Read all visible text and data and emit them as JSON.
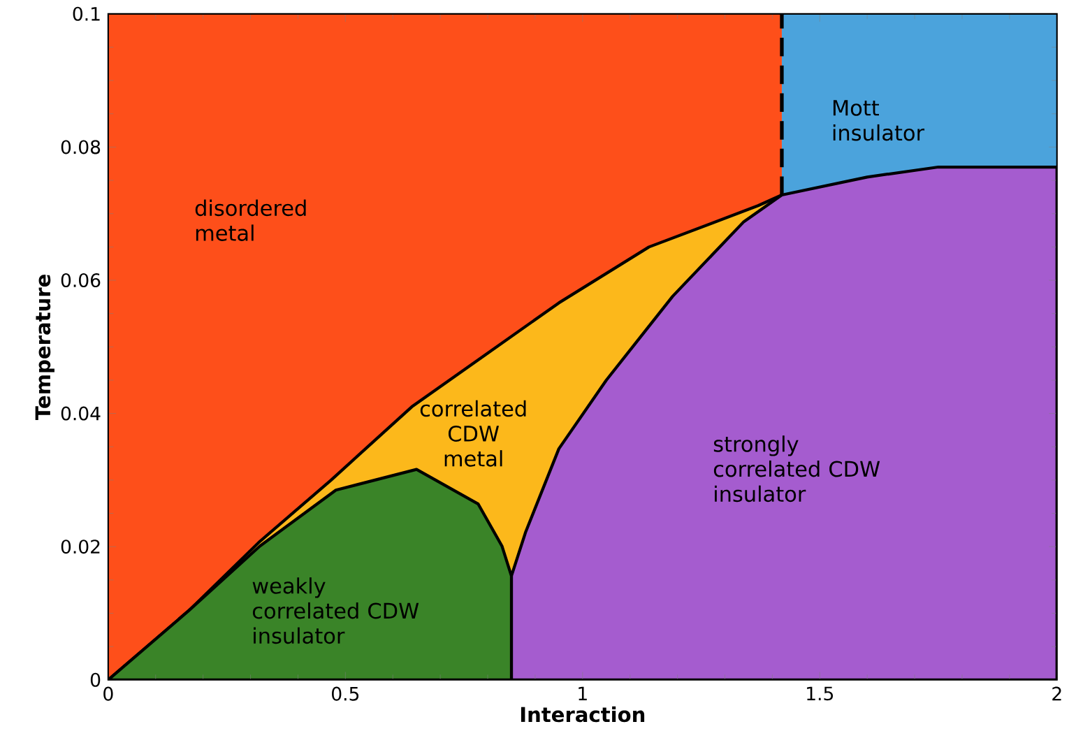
{
  "chart_data": {
    "type": "area",
    "xlabel": "Interaction",
    "ylabel": "Temperature",
    "xlim": [
      0,
      2
    ],
    "ylim": [
      0,
      0.1
    ],
    "xticks": [
      0,
      0.5,
      1,
      1.5,
      2
    ],
    "yticks": [
      0,
      0.02,
      0.04,
      0.06,
      0.08,
      0.1
    ],
    "grid": false,
    "series": [
      {
        "name": "disordered metal",
        "color": "#fe4f1a",
        "x": [
          0,
          1.42
        ],
        "values": [
          0.1,
          0.1
        ]
      },
      {
        "name": "Mott insulator",
        "color": "#4ba3dc",
        "x": [
          1.42,
          2
        ],
        "values": [
          0.1,
          0.1
        ]
      },
      {
        "name": "correlated CDW metal",
        "color": "#fcb81b",
        "x": [
          0,
          0.17,
          0.32,
          0.47,
          0.64,
          0.95,
          1.14,
          1.37,
          1.42
        ],
        "values": [
          0,
          0.0104,
          0.0208,
          0.03,
          0.041,
          0.0566,
          0.065,
          0.0712,
          0.0728
        ]
      },
      {
        "name": "strongly correlated CDW insulator",
        "color": "#a55ccf",
        "x": [
          0.85,
          0.85,
          0.88,
          0.95,
          1.05,
          1.19,
          1.34,
          1.42,
          1.6,
          1.75,
          2
        ],
        "values": [
          0,
          0.0156,
          0.0222,
          0.0347,
          0.045,
          0.0576,
          0.0688,
          0.0728,
          0.0755,
          0.077,
          0.077
        ]
      },
      {
        "name": "weakly correlated CDW insulator",
        "color": "#3a8428",
        "x": [
          0,
          0.17,
          0.32,
          0.48,
          0.65,
          0.78,
          0.83,
          0.85,
          0.85
        ],
        "values": [
          0,
          0.0104,
          0.0201,
          0.0285,
          0.0316,
          0.0264,
          0.0201,
          0.0156,
          0
        ]
      },
      {
        "type": "line",
        "color": "#000000",
        "line_style": "dashed",
        "x": [
          1.42,
          1.42
        ],
        "values": [
          0.0728,
          0.1
        ]
      }
    ]
  }
}
